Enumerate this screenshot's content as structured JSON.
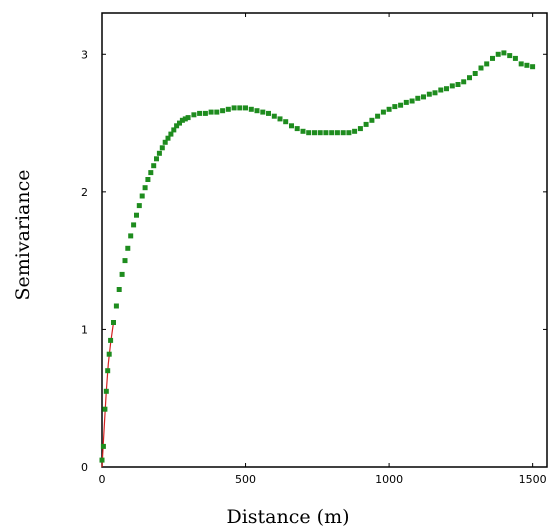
{
  "chart_data": {
    "type": "scatter",
    "title": "",
    "xlabel": "Distance (m)",
    "ylabel": "Semivariance",
    "xlim": [
      0,
      1550
    ],
    "ylim": [
      0,
      3.3
    ],
    "x_ticks": [
      "0",
      "500",
      "1000",
      "1500"
    ],
    "y_ticks": [
      "0",
      "1",
      "2",
      "3"
    ],
    "grid": false,
    "legend": "none",
    "colors": {
      "points": "#1e8c1e",
      "model_line": "#d42020",
      "axes": "#000000"
    },
    "series": [
      {
        "values": [
          [
            0,
            0.05
          ],
          [
            5,
            0.15
          ],
          [
            10,
            0.42
          ],
          [
            15,
            0.55
          ],
          [
            20,
            0.7
          ],
          [
            25,
            0.82
          ],
          [
            30,
            0.92
          ],
          [
            40,
            1.05
          ],
          [
            50,
            1.17
          ],
          [
            60,
            1.29
          ],
          [
            70,
            1.4
          ],
          [
            80,
            1.5
          ],
          [
            90,
            1.59
          ],
          [
            100,
            1.68
          ],
          [
            110,
            1.76
          ],
          [
            120,
            1.83
          ],
          [
            130,
            1.9
          ],
          [
            140,
            1.97
          ],
          [
            150,
            2.03
          ],
          [
            160,
            2.09
          ],
          [
            170,
            2.14
          ],
          [
            180,
            2.19
          ],
          [
            190,
            2.24
          ],
          [
            200,
            2.28
          ],
          [
            210,
            2.32
          ],
          [
            220,
            2.36
          ],
          [
            230,
            2.39
          ],
          [
            240,
            2.42
          ],
          [
            250,
            2.45
          ],
          [
            260,
            2.48
          ],
          [
            270,
            2.5
          ],
          [
            280,
            2.52
          ],
          [
            290,
            2.53
          ],
          [
            300,
            2.54
          ],
          [
            320,
            2.56
          ],
          [
            340,
            2.57
          ],
          [
            360,
            2.57
          ],
          [
            380,
            2.58
          ],
          [
            400,
            2.58
          ],
          [
            420,
            2.59
          ],
          [
            440,
            2.6
          ],
          [
            460,
            2.61
          ],
          [
            480,
            2.61
          ],
          [
            500,
            2.61
          ],
          [
            520,
            2.6
          ],
          [
            540,
            2.59
          ],
          [
            560,
            2.58
          ],
          [
            580,
            2.57
          ],
          [
            600,
            2.55
          ],
          [
            620,
            2.53
          ],
          [
            640,
            2.51
          ],
          [
            660,
            2.48
          ],
          [
            680,
            2.46
          ],
          [
            700,
            2.44
          ],
          [
            720,
            2.43
          ],
          [
            740,
            2.43
          ],
          [
            760,
            2.43
          ],
          [
            780,
            2.43
          ],
          [
            800,
            2.43
          ],
          [
            820,
            2.43
          ],
          [
            840,
            2.43
          ],
          [
            860,
            2.43
          ],
          [
            880,
            2.44
          ],
          [
            900,
            2.46
          ],
          [
            920,
            2.49
          ],
          [
            940,
            2.52
          ],
          [
            960,
            2.55
          ],
          [
            980,
            2.58
          ],
          [
            1000,
            2.6
          ],
          [
            1020,
            2.62
          ],
          [
            1040,
            2.63
          ],
          [
            1060,
            2.65
          ],
          [
            1080,
            2.66
          ],
          [
            1100,
            2.68
          ],
          [
            1120,
            2.69
          ],
          [
            1140,
            2.71
          ],
          [
            1160,
            2.72
          ],
          [
            1180,
            2.74
          ],
          [
            1200,
            2.75
          ],
          [
            1220,
            2.77
          ],
          [
            1240,
            2.78
          ],
          [
            1260,
            2.8
          ],
          [
            1280,
            2.83
          ],
          [
            1300,
            2.86
          ],
          [
            1320,
            2.9
          ],
          [
            1340,
            2.93
          ],
          [
            1360,
            2.97
          ],
          [
            1380,
            3.0
          ],
          [
            1400,
            3.01
          ],
          [
            1420,
            2.99
          ],
          [
            1440,
            2.97
          ],
          [
            1460,
            2.93
          ],
          [
            1480,
            2.92
          ],
          [
            1500,
            2.91
          ]
        ]
      }
    ],
    "model_line": [
      [
        0,
        0
      ],
      [
        8,
        0.3
      ],
      [
        15,
        0.55
      ],
      [
        22,
        0.75
      ],
      [
        30,
        0.9
      ],
      [
        40,
        1.05
      ]
    ]
  }
}
